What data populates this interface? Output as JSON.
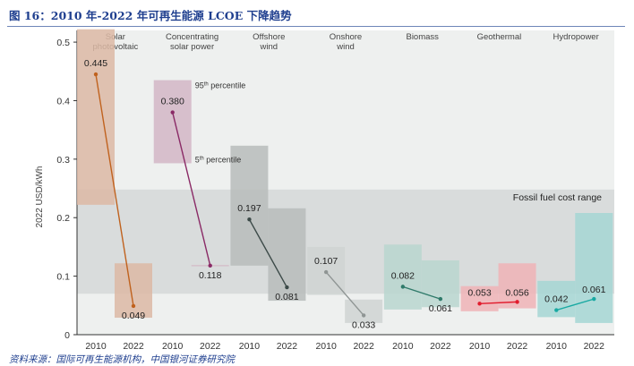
{
  "figure": {
    "title": "图 16：2010 年-2022 年可再生能源 LCOE 下降趋势",
    "source": "资料来源：国际可再生能源机构，中国银河证券研究院"
  },
  "chart_data": {
    "type": "range-bar-line",
    "ylabel": "2022 USD/kWh",
    "ylim": [
      0,
      0.52
    ],
    "yticks": [
      "0",
      "0.1",
      "0.2",
      "0.3",
      "0.4",
      "0.5"
    ],
    "ytick_values": [
      0,
      0.1,
      0.2,
      0.3,
      0.4,
      0.5
    ],
    "years": [
      "2010",
      "2022"
    ],
    "fossil_range": {
      "label": "Fossil fuel cost range",
      "low": 0.07,
      "high": 0.248,
      "color": "#d9dcdc"
    },
    "percentile_labels": {
      "p95": "95th percentile",
      "p5": "5th percentile",
      "p95_sup": "th",
      "p5_sup": "th",
      "p95_text": " percentile",
      "p5_text": " percentile",
      "p95_num": "95",
      "p5_num": "5"
    },
    "series": [
      {
        "name": "Solar photovoltaic",
        "name_lines": [
          "Solar",
          "photovoltaic"
        ],
        "bar_color": "#dcb8a4",
        "line_color": "#c0621e",
        "v2010": 0.445,
        "v2022": 0.049,
        "label2010": "0.445",
        "label2022": "0.049",
        "range2010": [
          0.222,
          0.522
        ],
        "range2022": [
          0.029,
          0.122
        ]
      },
      {
        "name": "Concentrating solar power",
        "name_lines": [
          "Concentrating",
          "solar power"
        ],
        "bar_color": "#d2b6c6",
        "line_color": "#8a2a66",
        "v2010": 0.38,
        "v2022": 0.118,
        "label2010": "0.380",
        "label2022": "0.118",
        "range2010": [
          0.293,
          0.435
        ],
        "range2022": [
          0.117,
          0.119
        ]
      },
      {
        "name": "Offshore wind",
        "name_lines": [
          "Offshore",
          "wind"
        ],
        "bar_color": "#b7bcbb",
        "line_color": "#3c4a48",
        "v2010": 0.197,
        "v2022": 0.081,
        "label2010": "0.197",
        "label2022": "0.081",
        "range2010": [
          0.118,
          0.323
        ],
        "range2022": [
          0.058,
          0.216
        ]
      },
      {
        "name": "Onshore wind",
        "name_lines": [
          "Onshore",
          "wind"
        ],
        "bar_color": "#cfd3d2",
        "line_color": "#8f9594",
        "v2010": 0.107,
        "v2022": 0.033,
        "label2010": "0.107",
        "label2022": "0.033",
        "range2010": [
          0.068,
          0.15
        ],
        "range2022": [
          0.02,
          0.06
        ]
      },
      {
        "name": "Biomass",
        "name_lines": [
          "Biomass"
        ],
        "bar_color": "#b9d6cf",
        "line_color": "#2f7a6a",
        "v2010": 0.082,
        "v2022": 0.061,
        "label2010": "0.082",
        "label2022": "0.061",
        "range2010": [
          0.043,
          0.154
        ],
        "range2022": [
          0.047,
          0.127
        ]
      },
      {
        "name": "Geothermal",
        "name_lines": [
          "Geothermal"
        ],
        "bar_color": "#eeb3b6",
        "line_color": "#e11d2e",
        "v2010": 0.053,
        "v2022": 0.056,
        "label2010": "0.053",
        "label2022": "0.056",
        "range2010": [
          0.04,
          0.083
        ],
        "range2022": [
          0.045,
          0.122
        ]
      },
      {
        "name": "Hydropower",
        "name_lines": [
          "Hydropower"
        ],
        "bar_color": "#a4d6d4",
        "line_color": "#18a9a2",
        "v2010": 0.042,
        "v2022": 0.061,
        "label2010": "0.042",
        "label2022": "0.061",
        "range2010": [
          0.03,
          0.092
        ],
        "range2022": [
          0.02,
          0.208
        ]
      }
    ],
    "grid": false,
    "background": "#eef0ef"
  }
}
